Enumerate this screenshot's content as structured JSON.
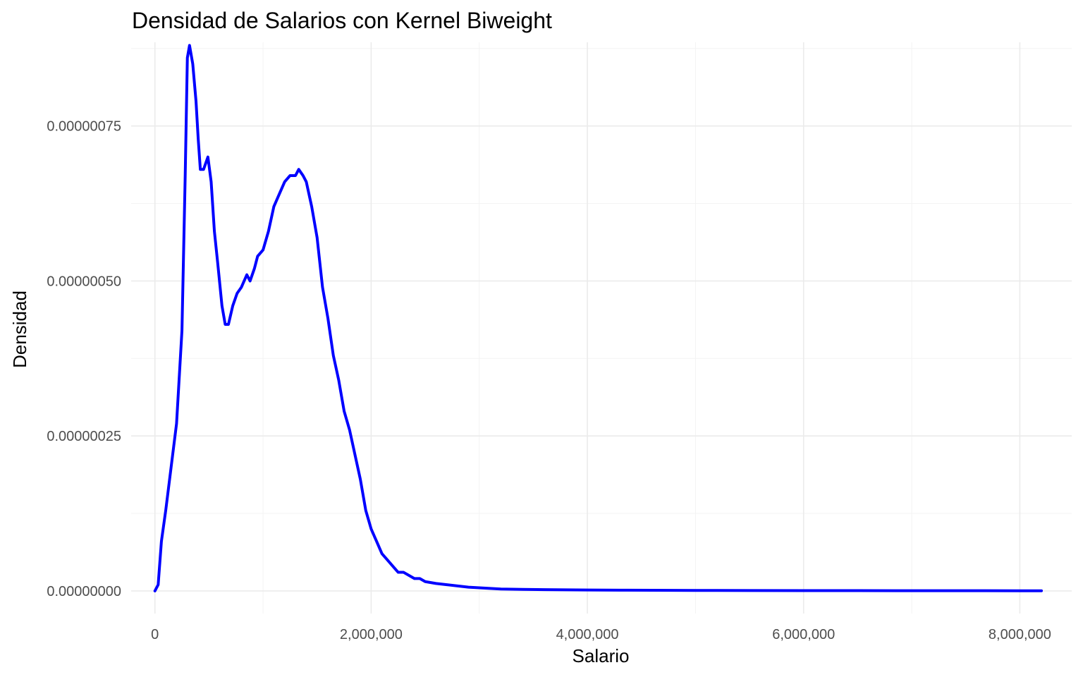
{
  "chart_data": {
    "type": "line",
    "title": "Densidad de Salarios con Kernel Biweight",
    "xlabel": "Salario",
    "ylabel": "Densidad",
    "xlim": [
      -220000,
      8480000
    ],
    "ylim": [
      -3.65e-08,
      8.85e-07
    ],
    "x_ticks": [
      0,
      2000000,
      4000000,
      6000000,
      8000000
    ],
    "x_tick_labels": [
      "0",
      "2,000,000",
      "4,000,000",
      "6,000,000",
      "8,000,000"
    ],
    "y_ticks": [
      0,
      2.5e-07,
      5e-07,
      7.5e-07
    ],
    "y_tick_labels": [
      "0.00000000",
      "0.00000025",
      "0.00000050",
      "0.00000075"
    ],
    "grid": true,
    "legend": "none",
    "series": [
      {
        "color": "#0000ff",
        "x": [
          0,
          30000,
          60000,
          100000,
          150000,
          200000,
          250000,
          280000,
          300000,
          320000,
          350000,
          380000,
          400000,
          420000,
          450000,
          490000,
          520000,
          550000,
          580000,
          620000,
          650000,
          680000,
          720000,
          760000,
          800000,
          850000,
          880000,
          920000,
          950000,
          1000000,
          1050000,
          1100000,
          1150000,
          1200000,
          1250000,
          1300000,
          1330000,
          1370000,
          1400000,
          1450000,
          1500000,
          1550000,
          1600000,
          1650000,
          1700000,
          1750000,
          1800000,
          1850000,
          1900000,
          1950000,
          2000000,
          2050000,
          2100000,
          2150000,
          2200000,
          2250000,
          2300000,
          2400000,
          2450000,
          2500000,
          2600000,
          2700000,
          2800000,
          2900000,
          3000000,
          3100000,
          3200000,
          3400000,
          3600000,
          3800000,
          4000000,
          4300000,
          4600000,
          5000000,
          5500000,
          6000000,
          6500000,
          7000000,
          7500000,
          8000000,
          8200000
        ],
        "y": [
          0,
          1e-08,
          8e-08,
          1.3e-07,
          2e-07,
          2.7e-07,
          4.2e-07,
          6.7e-07,
          8.6e-07,
          8.8e-07,
          8.5e-07,
          7.9e-07,
          7.3e-07,
          6.8e-07,
          6.8e-07,
          7e-07,
          6.6e-07,
          5.8e-07,
          5.3e-07,
          4.6e-07,
          4.3e-07,
          4.3e-07,
          4.6e-07,
          4.8e-07,
          4.9e-07,
          5.1e-07,
          5e-07,
          5.2e-07,
          5.4e-07,
          5.5e-07,
          5.8e-07,
          6.2e-07,
          6.4e-07,
          6.6e-07,
          6.7e-07,
          6.7e-07,
          6.8e-07,
          6.7e-07,
          6.6e-07,
          6.2e-07,
          5.7e-07,
          4.9e-07,
          4.4e-07,
          3.8e-07,
          3.4e-07,
          2.9e-07,
          2.6e-07,
          2.2e-07,
          1.8e-07,
          1.3e-07,
          1e-07,
          8e-08,
          6e-08,
          5e-08,
          4e-08,
          3e-08,
          3e-08,
          2e-08,
          2e-08,
          1.5e-08,
          1.2e-08,
          1e-08,
          8e-09,
          6e-09,
          5e-09,
          4e-09,
          3e-09,
          2.5e-09,
          2e-09,
          1.8e-09,
          1.5e-09,
          1.2e-09,
          1e-09,
          8e-10,
          6e-10,
          5e-10,
          4e-10,
          3e-10,
          3e-10,
          2e-10,
          2e-10
        ]
      }
    ]
  }
}
